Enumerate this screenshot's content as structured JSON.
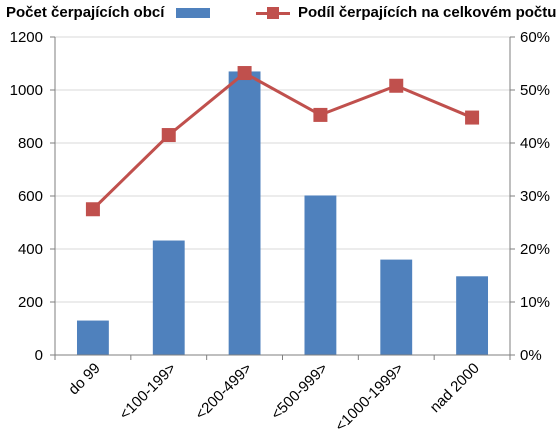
{
  "chart_data": {
    "type": "bar",
    "categories": [
      "do 99",
      "<100-199>",
      "<200-499>",
      "<500-999>",
      "<1000-1999>",
      "nad 2000"
    ],
    "series": [
      {
        "name": "Počet čerpajících obcí",
        "type": "bar",
        "axis": "left",
        "color": "#4f81bd",
        "values": [
          130,
          432,
          1070,
          602,
          360,
          297
        ]
      },
      {
        "name": "Podíl čerpajících na celkovém počtu",
        "type": "line",
        "axis": "right",
        "color": "#c0504d",
        "marker": "square",
        "values": [
          0.275,
          0.415,
          0.532,
          0.453,
          0.508,
          0.448
        ]
      }
    ],
    "y_left": {
      "ylim": [
        0,
        1200
      ],
      "ticks": [
        "0",
        "200",
        "400",
        "600",
        "800",
        "1000",
        "1200"
      ]
    },
    "y_right": {
      "ylim": [
        0,
        0.6
      ],
      "ticks": [
        "0%",
        "10%",
        "20%",
        "30%",
        "40%",
        "50%",
        "60%"
      ]
    },
    "grid": true,
    "legend_position": "top"
  }
}
